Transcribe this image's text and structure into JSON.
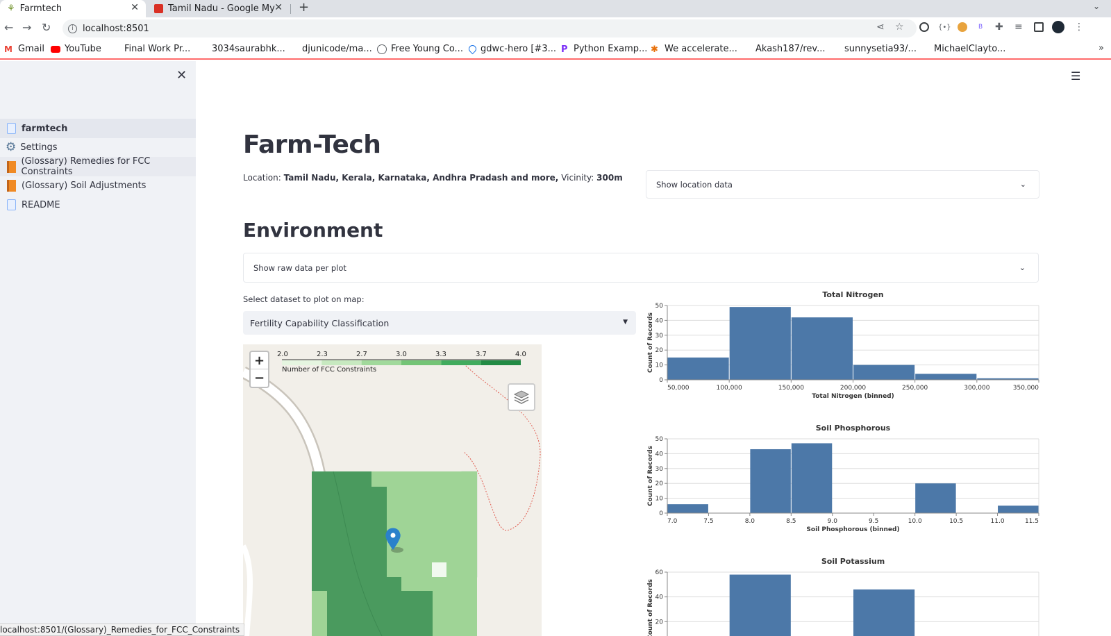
{
  "browser": {
    "tabs": [
      {
        "title": "Farmtech",
        "active": true,
        "icon": "farmtech-sprout-icon"
      },
      {
        "title": "Tamil Nadu - Google My Maps",
        "active": false,
        "icon": "google-my-maps-icon"
      }
    ],
    "url": "localhost:8501",
    "bookmarks": [
      {
        "label": "Gmail",
        "icon": "gmail-icon",
        "color": "#ea4335"
      },
      {
        "label": "YouTube",
        "icon": "youtube-icon",
        "color": "#ff0000"
      },
      {
        "label": "Final Work Pr...",
        "icon": "",
        "color": ""
      },
      {
        "label": "3034saurabhk...",
        "icon": "",
        "color": ""
      },
      {
        "label": "djunicode/ma...",
        "icon": "",
        "color": ""
      },
      {
        "label": "Free Young Co...",
        "icon": "globe-icon",
        "color": "#5f6368"
      },
      {
        "label": "gdwc-hero [#3...",
        "icon": "drop-icon",
        "color": "#1a73e8"
      },
      {
        "label": "Python Examp...",
        "icon": "python-p-icon",
        "color": "#7b2ff7"
      },
      {
        "label": "We accelerate...",
        "icon": "snowflake-icon",
        "color": "#e8710a"
      },
      {
        "label": "Akash187/rev...",
        "icon": "",
        "color": ""
      },
      {
        "label": "sunnysetia93/...",
        "icon": "",
        "color": ""
      },
      {
        "label": "MichaelClayto...",
        "icon": "",
        "color": ""
      }
    ],
    "status_url": "localhost:8501/(Glossary)_Remedies_for_FCC_Constraints"
  },
  "sidebar": {
    "items": [
      {
        "label": "farmtech",
        "icon": "document-icon",
        "active": true
      },
      {
        "label": "Settings",
        "icon": "gear-icon",
        "active": false
      },
      {
        "label": "(Glossary) Remedies for FCC Constraints",
        "icon": "book-icon",
        "active": false
      },
      {
        "label": "(Glossary) Soil Adjustments",
        "icon": "book-icon",
        "active": false
      },
      {
        "label": "README",
        "icon": "document-icon",
        "active": false
      }
    ]
  },
  "main": {
    "title": "Farm-Tech",
    "location_label": "Location: ",
    "location_value": "Tamil Nadu, Kerala, Karnataka, Andhra Pradash and more,",
    "vicinity_label": " Vicinity: ",
    "vicinity_value": "300m",
    "show_location_label": "Show location data",
    "environment_heading": "Environment",
    "show_raw_label": "Show raw data per plot",
    "select_label": "Select dataset to plot on map:",
    "select_value": "Fertility Capability Classification"
  },
  "map": {
    "legend_ticks": [
      "2.0",
      "2.3",
      "2.7",
      "3.0",
      "3.3",
      "3.7",
      "4.0"
    ],
    "legend_caption": "Number of FCC Constraints",
    "legend_colors": [
      "#e5f5e0",
      "#c7e9c0",
      "#a1d99b",
      "#74c476",
      "#41ab5d",
      "#238b45"
    ],
    "zoom_in": "+",
    "zoom_out": "−",
    "fill_dark": "#4a9a5e",
    "fill_light": "#9fd496",
    "fill_pale": "#e8f3e3",
    "marker_color": "#2a81cb"
  },
  "charts": {
    "bar_color": "#4c78a8",
    "y_axis_title": "Count of Records"
  },
  "chart_data": [
    {
      "type": "bar",
      "title": "Total Nitrogen",
      "xlabel": "Total Nitrogen (binned)",
      "ylabel": "Count of Records",
      "x_ticks": [
        "50,000",
        "100,000",
        "150,000",
        "200,000",
        "250,000",
        "300,000",
        "350,000"
      ],
      "y_ticks": [
        "0",
        "10",
        "20",
        "30",
        "40",
        "50"
      ],
      "xlim": [
        50000,
        350000
      ],
      "ylim": [
        0,
        50
      ],
      "bins": [
        {
          "start": 50000,
          "end": 100000,
          "count": 15
        },
        {
          "start": 100000,
          "end": 150000,
          "count": 49
        },
        {
          "start": 150000,
          "end": 200000,
          "count": 42
        },
        {
          "start": 200000,
          "end": 250000,
          "count": 10
        },
        {
          "start": 250000,
          "end": 300000,
          "count": 4
        },
        {
          "start": 300000,
          "end": 350000,
          "count": 1
        }
      ]
    },
    {
      "type": "bar",
      "title": "Soil Phosphorous",
      "xlabel": "Soil Phosphorous (binned)",
      "ylabel": "Count of Records",
      "x_ticks": [
        "7.0",
        "7.5",
        "8.0",
        "8.5",
        "9.0",
        "9.5",
        "10.0",
        "10.5",
        "11.0",
        "11.5"
      ],
      "y_ticks": [
        "0",
        "10",
        "20",
        "30",
        "40",
        "50"
      ],
      "xlim": [
        7.0,
        11.5
      ],
      "ylim": [
        0,
        50
      ],
      "bins": [
        {
          "start": 7.0,
          "end": 7.5,
          "count": 6
        },
        {
          "start": 8.0,
          "end": 8.5,
          "count": 43
        },
        {
          "start": 8.5,
          "end": 9.0,
          "count": 47
        },
        {
          "start": 10.0,
          "end": 10.5,
          "count": 20
        },
        {
          "start": 11.0,
          "end": 11.5,
          "count": 5
        }
      ]
    },
    {
      "type": "bar",
      "title": "Soil Potassium",
      "xlabel": "",
      "ylabel": "Count of Records",
      "x_ticks": [],
      "y_ticks": [
        "20",
        "40",
        "60"
      ],
      "xlim": [
        0,
        6
      ],
      "ylim": [
        0,
        60
      ],
      "bins": [
        {
          "start": 1,
          "end": 2,
          "count": 58
        },
        {
          "start": 3,
          "end": 4,
          "count": 46
        }
      ]
    }
  ]
}
